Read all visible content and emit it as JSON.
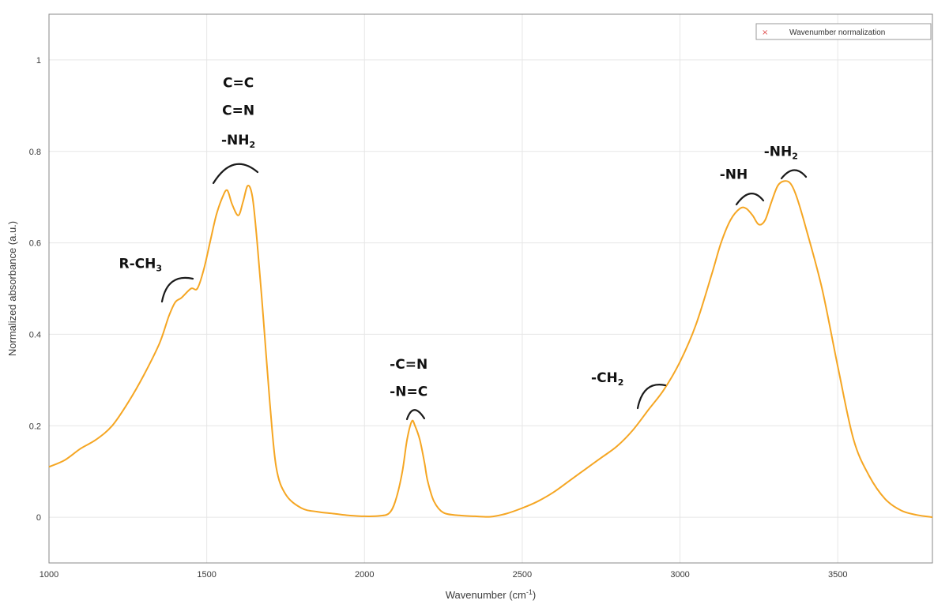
{
  "chart_data": {
    "type": "line",
    "title": "",
    "xlabel": "Wavenumber (cm",
    "xlabel_sup": "-1",
    "xlabel_close": ")",
    "ylabel": "Normalized absorbance (a.u.)",
    "xlim": [
      1000,
      3800
    ],
    "ylim": [
      -0.1,
      1.1
    ],
    "xticks": [
      1000,
      1500,
      2000,
      2500,
      3000,
      3500
    ],
    "yticks": [
      0,
      0.2,
      0.4,
      0.6,
      0.8,
      1
    ],
    "grid": true,
    "legend_position": "top-right",
    "series": [
      {
        "name": "Wavenumber normalization",
        "color": "#f5a623",
        "x": [
          1000,
          1050,
          1100,
          1150,
          1200,
          1250,
          1300,
          1350,
          1380,
          1400,
          1420,
          1450,
          1470,
          1490,
          1510,
          1530,
          1550,
          1565,
          1580,
          1600,
          1615,
          1630,
          1645,
          1660,
          1680,
          1700,
          1720,
          1750,
          1800,
          1850,
          1900,
          1950,
          2000,
          2050,
          2080,
          2100,
          2120,
          2135,
          2150,
          2160,
          2175,
          2190,
          2200,
          2220,
          2250,
          2300,
          2350,
          2400,
          2450,
          2500,
          2550,
          2600,
          2650,
          2700,
          2750,
          2800,
          2850,
          2900,
          2950,
          3000,
          3050,
          3100,
          3130,
          3160,
          3190,
          3210,
          3230,
          3250,
          3270,
          3290,
          3310,
          3330,
          3350,
          3370,
          3400,
          3450,
          3500,
          3550,
          3600,
          3650,
          3700,
          3750,
          3800
        ],
        "y": [
          0.11,
          0.125,
          0.15,
          0.17,
          0.2,
          0.25,
          0.31,
          0.38,
          0.44,
          0.47,
          0.48,
          0.5,
          0.5,
          0.54,
          0.6,
          0.66,
          0.7,
          0.715,
          0.685,
          0.66,
          0.69,
          0.725,
          0.7,
          0.6,
          0.43,
          0.25,
          0.11,
          0.05,
          0.02,
          0.012,
          0.008,
          0.004,
          0.002,
          0.003,
          0.01,
          0.04,
          0.1,
          0.17,
          0.21,
          0.2,
          0.17,
          0.12,
          0.08,
          0.035,
          0.01,
          0.004,
          0.002,
          0.001,
          0.008,
          0.02,
          0.035,
          0.055,
          0.08,
          0.105,
          0.13,
          0.155,
          0.19,
          0.235,
          0.28,
          0.34,
          0.42,
          0.53,
          0.6,
          0.65,
          0.675,
          0.675,
          0.66,
          0.64,
          0.65,
          0.69,
          0.725,
          0.735,
          0.73,
          0.7,
          0.63,
          0.5,
          0.33,
          0.17,
          0.09,
          0.04,
          0.015,
          0.005,
          0.0
        ]
      }
    ],
    "annotations": [
      {
        "text": "C=C",
        "x": 1600,
        "y": 0.94
      },
      {
        "text": "C=N",
        "x": 1600,
        "y": 0.88
      },
      {
        "text": "-NH",
        "sub": "2",
        "x": 1600,
        "y": 0.815
      },
      {
        "text": "R-CH",
        "sub": "3",
        "x": 1290,
        "y": 0.545
      },
      {
        "text": "-C=N",
        "x": 2140,
        "y": 0.325
      },
      {
        "text": "-N=C",
        "x": 2140,
        "y": 0.265
      },
      {
        "text": "-CH",
        "sub": "2",
        "x": 2770,
        "y": 0.295
      },
      {
        "text": "-NH",
        "x": 3170,
        "y": 0.74
      },
      {
        "text": "-NH",
        "sub": "2",
        "x": 3320,
        "y": 0.79
      }
    ]
  }
}
